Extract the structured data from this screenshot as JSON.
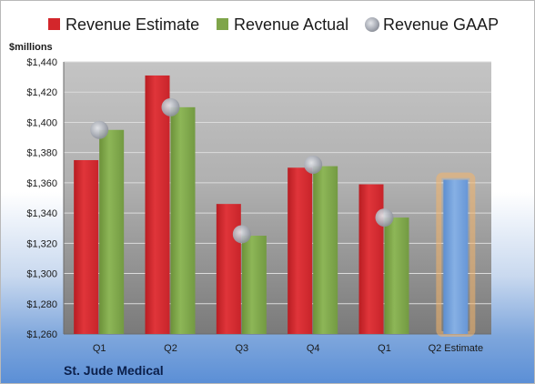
{
  "chart_data": {
    "type": "bar",
    "categories": [
      "Q1",
      "Q2",
      "Q3",
      "Q4",
      "Q1",
      "Q2 Estimate"
    ],
    "series": [
      {
        "name": "Revenue Estimate",
        "color": "#d3262b",
        "values": [
          1375,
          1431,
          1346,
          1370,
          1359,
          null
        ]
      },
      {
        "name": "Revenue Actual",
        "color": "#7fa54a",
        "values": [
          1395,
          1410,
          1325,
          1371,
          1337,
          null
        ]
      },
      {
        "name": "Revenue GAAP",
        "color": "#a9adb6",
        "marker": "circle",
        "values": [
          1395,
          1410,
          1326,
          1372,
          1337,
          null
        ]
      }
    ],
    "forecast": {
      "category": "Q2 Estimate",
      "value": 1362,
      "color": "#6f9ed8",
      "glow": "#f4b56a"
    },
    "ylabel": "$millions",
    "ylim": [
      1260,
      1440
    ],
    "yticks": [
      1260,
      1280,
      1300,
      1320,
      1340,
      1360,
      1380,
      1400,
      1420,
      1440
    ],
    "ytick_labels": [
      "$1,260",
      "$1,280",
      "$1,300",
      "$1,320",
      "$1,340",
      "$1,360",
      "$1,380",
      "$1,400",
      "$1,420",
      "$1,440"
    ],
    "grid": true,
    "legend": "top",
    "company": "St. Jude Medical"
  }
}
